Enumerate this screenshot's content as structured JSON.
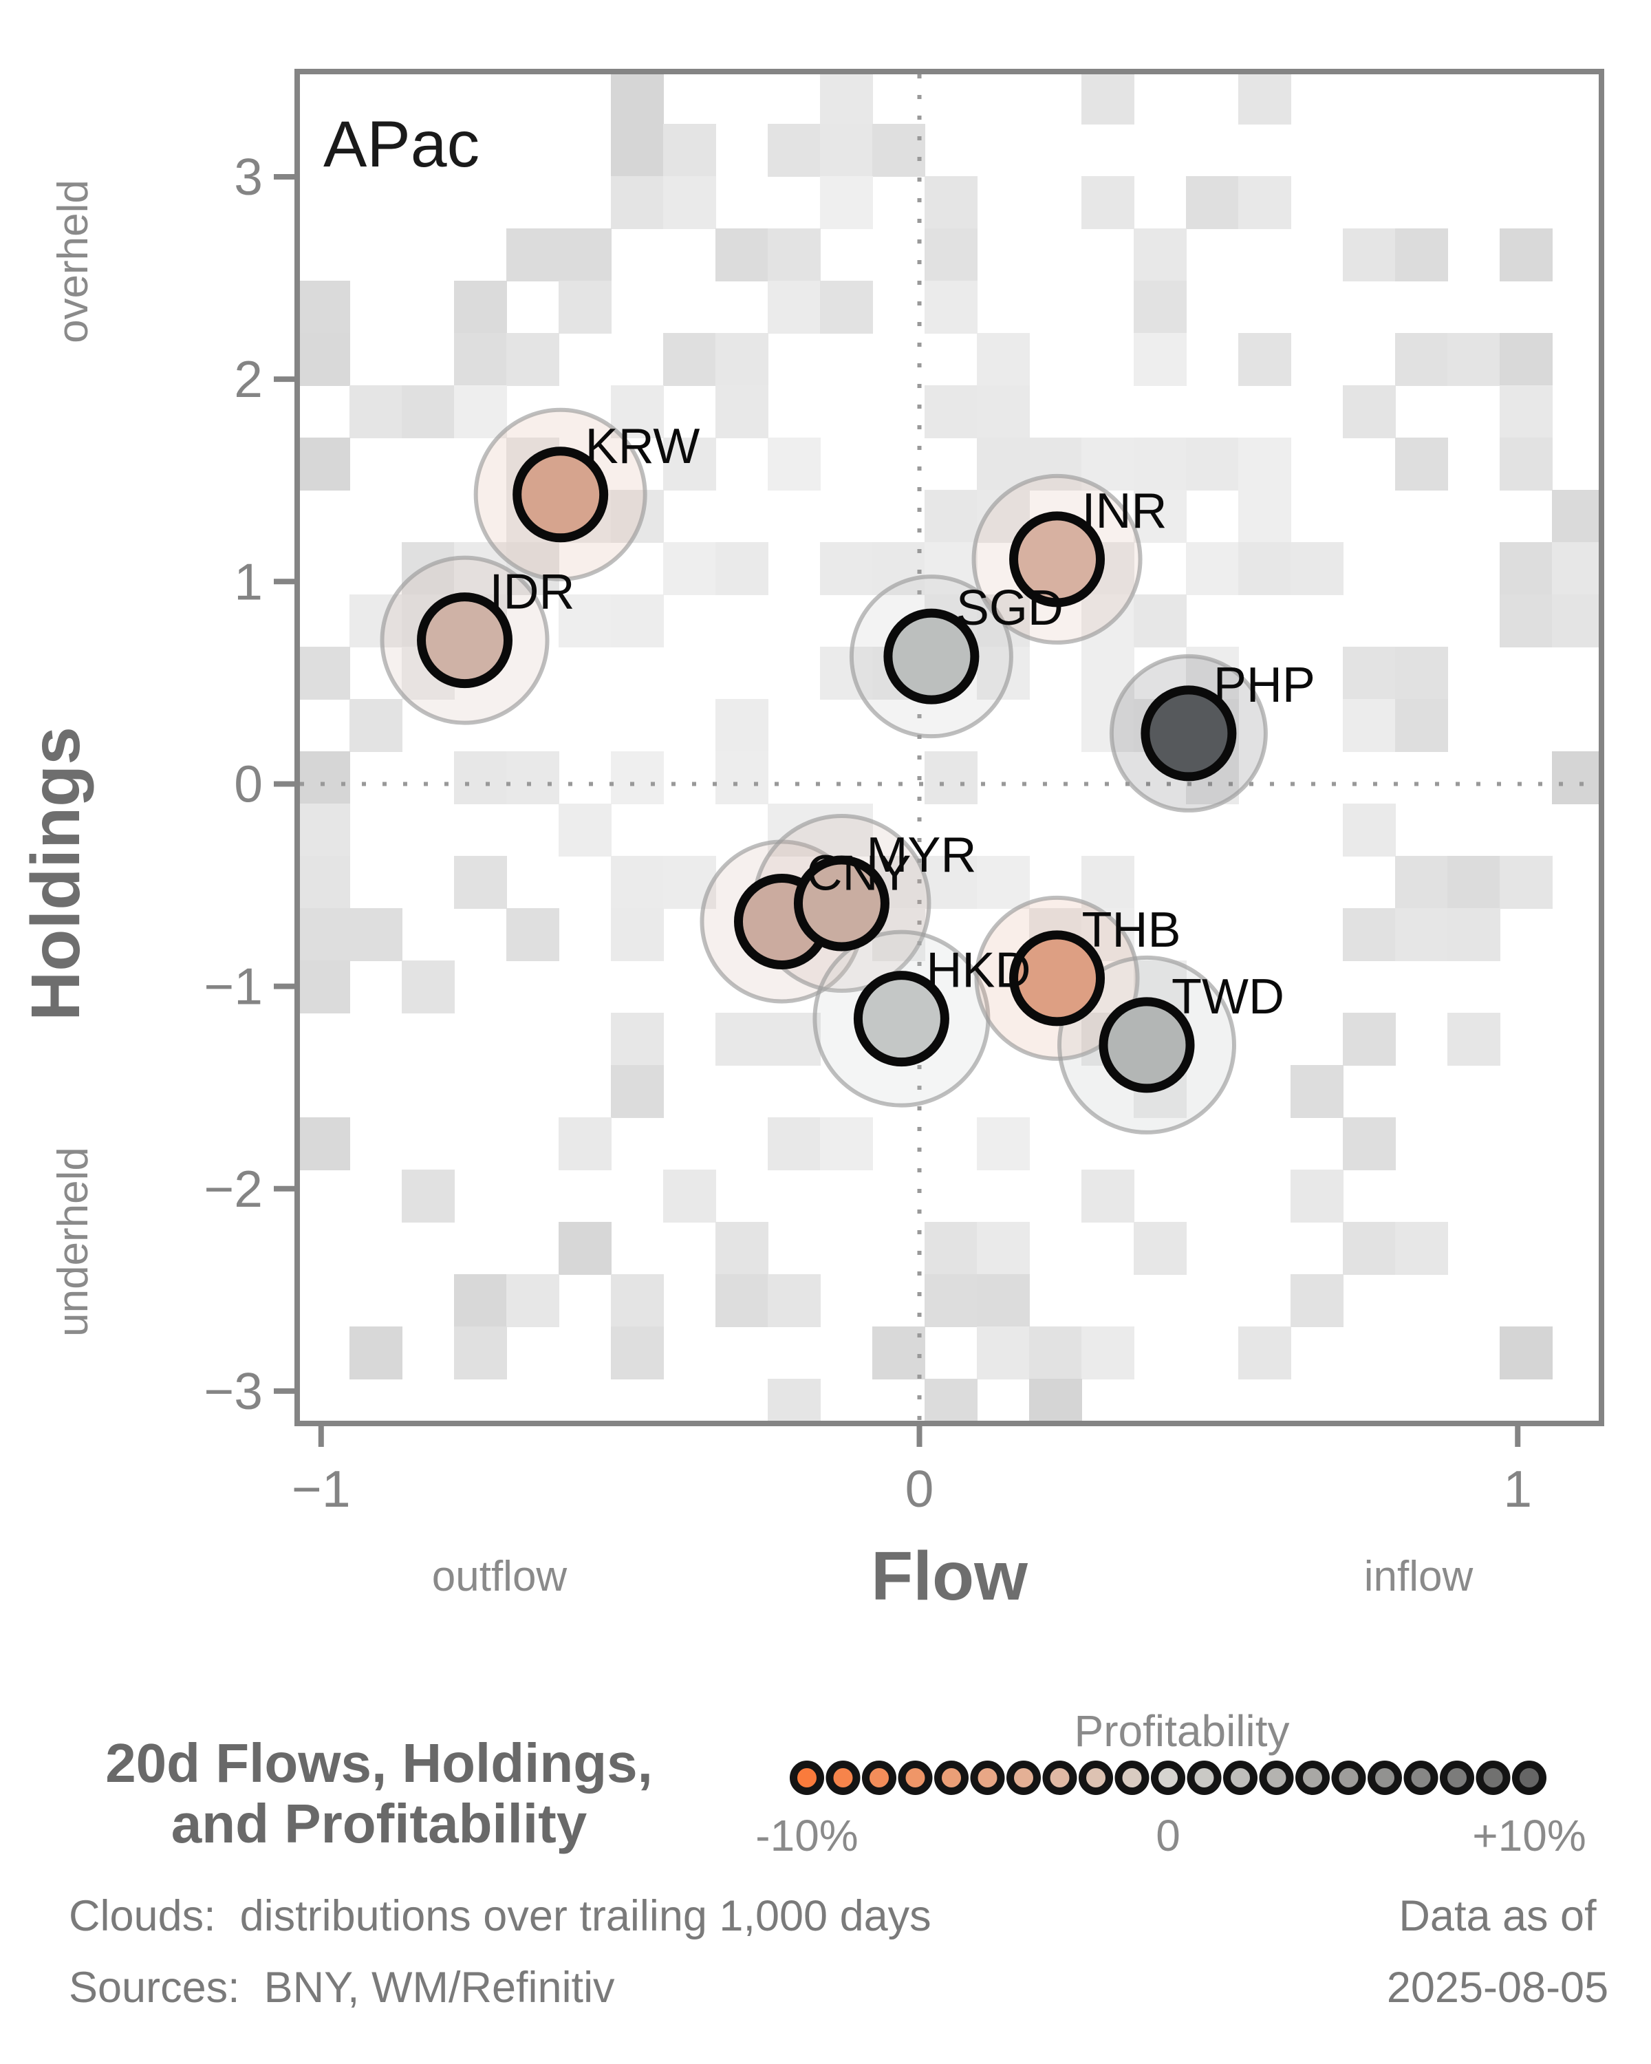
{
  "panel_label": "APac",
  "axes": {
    "x": {
      "label": "Flow",
      "neg_hint": "outflow",
      "pos_hint": "inflow",
      "range": [
        -1.04,
        1.14
      ],
      "ticks": [
        {
          "v": -1,
          "t": "−1"
        },
        {
          "v": 0,
          "t": "0"
        },
        {
          "v": 1,
          "t": "1"
        }
      ]
    },
    "y": {
      "label": "Holdings",
      "pos_hint": "overheld",
      "neg_hint": "underheld",
      "range": [
        -3.16,
        3.52
      ],
      "ticks": [
        {
          "v": 3,
          "t": "3"
        },
        {
          "v": 2,
          "t": "2"
        },
        {
          "v": 1,
          "t": "1"
        },
        {
          "v": 0,
          "t": "0"
        },
        {
          "v": -1,
          "t": "−1"
        },
        {
          "v": -2,
          "t": "−2"
        },
        {
          "v": -3,
          "t": "−3"
        }
      ]
    }
  },
  "chart_data": {
    "type": "scatter",
    "title": "20d Flows, Holdings, and Profitability",
    "region": "APac",
    "xlabel": "Flow",
    "ylabel": "Holdings",
    "xlim": [
      -1.04,
      1.14
    ],
    "ylim": [
      -3.16,
      3.52
    ],
    "grid": false,
    "background": "density cloud: distributions over trailing 1,000 days",
    "series": [
      {
        "code": "KRW",
        "flow": -0.6,
        "holdings": 1.43,
        "profitability_color": "#d6a48e",
        "halo_r": 123
      },
      {
        "code": "IDR",
        "flow": -0.76,
        "holdings": 0.71,
        "profitability_color": "#cfb2a6",
        "halo_r": 120
      },
      {
        "code": "SGD",
        "flow": 0.02,
        "holdings": 0.63,
        "profitability_color": "#bcbfbe",
        "halo_r": 116
      },
      {
        "code": "INR",
        "flow": 0.23,
        "holdings": 1.11,
        "profitability_color": "#d7b1a1",
        "halo_r": 121
      },
      {
        "code": "PHP",
        "flow": 0.45,
        "holdings": 0.25,
        "profitability_color": "#56595c",
        "halo_r": 112
      },
      {
        "code": "CNY",
        "flow": -0.23,
        "holdings": -0.68,
        "profitability_color": "#cbab9f",
        "halo_r": 116
      },
      {
        "code": "MYR",
        "flow": -0.13,
        "holdings": -0.59,
        "profitability_color": "#c9ada1",
        "halo_r": 127
      },
      {
        "code": "HKD",
        "flow": -0.03,
        "holdings": -1.16,
        "profitability_color": "#c4c7c6",
        "halo_r": 126
      },
      {
        "code": "THB",
        "flow": 0.23,
        "holdings": -0.96,
        "profitability_color": "#dd9f83",
        "halo_r": 117
      },
      {
        "code": "TWD",
        "flow": 0.38,
        "holdings": -1.29,
        "profitability_color": "#b3b6b5",
        "halo_r": 127
      }
    ],
    "legend": {
      "title": "Profitability",
      "min": "-10%",
      "mid": "0",
      "max": "+10%",
      "colors": [
        "#fa7b3c",
        "#f6844b",
        "#f38d5a",
        "#ef9668",
        "#eb9f77",
        "#e8a786",
        "#e4b095",
        "#e0b9a4",
        "#ddc2b2",
        "#d9cbc1",
        "#d6d4d0",
        "#cac9c5",
        "#bfbebb",
        "#b4b3b0",
        "#a9a8a5",
        "#9e9d9b",
        "#929290",
        "#878786",
        "#7c7c7b",
        "#717170",
        "#666666"
      ]
    }
  },
  "footer": {
    "title_line1": "20d Flows, Holdings,",
    "title_line2": "and Profitability",
    "clouds_line": "Clouds:  distributions over trailing 1,000 days",
    "sources_line": "Sources:  BNY, WM/Refinitiv",
    "data_as_of_line1": "Data as of",
    "data_as_of_line2": "2025-08-05"
  },
  "style": {
    "axis_color": "#848484",
    "tick_label_color": "#848484",
    "hint_color": "#8a8a8a",
    "axis_title_color": "#6e6e6e",
    "panel_label_color": "#1a1a1a",
    "marker_stroke": "#0a0a0a",
    "marker_label_color": "#0a0a0a",
    "halo_stroke": "#9b9b9b",
    "zero_line_color": "#999999",
    "legend_title_color": "#8a8a8a",
    "footer_title_color": "#696969",
    "footer_text_color": "#7a7a7a"
  },
  "cloud": {
    "cols": 25,
    "rows": 26,
    "bin": 76,
    "center_col": 12.4,
    "center_row": 13.1,
    "rx": 11.9,
    "ry": 12.7,
    "noise": 0.42,
    "seed": 7
  }
}
